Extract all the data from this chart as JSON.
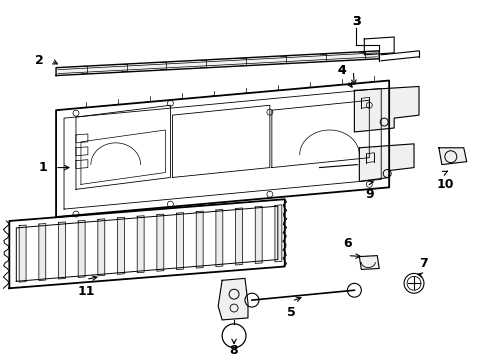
{
  "background_color": "#ffffff",
  "fig_width": 4.89,
  "fig_height": 3.6,
  "dpi": 100,
  "line_color": "#000000",
  "label_fontsize": 9,
  "label_fontweight": "bold"
}
